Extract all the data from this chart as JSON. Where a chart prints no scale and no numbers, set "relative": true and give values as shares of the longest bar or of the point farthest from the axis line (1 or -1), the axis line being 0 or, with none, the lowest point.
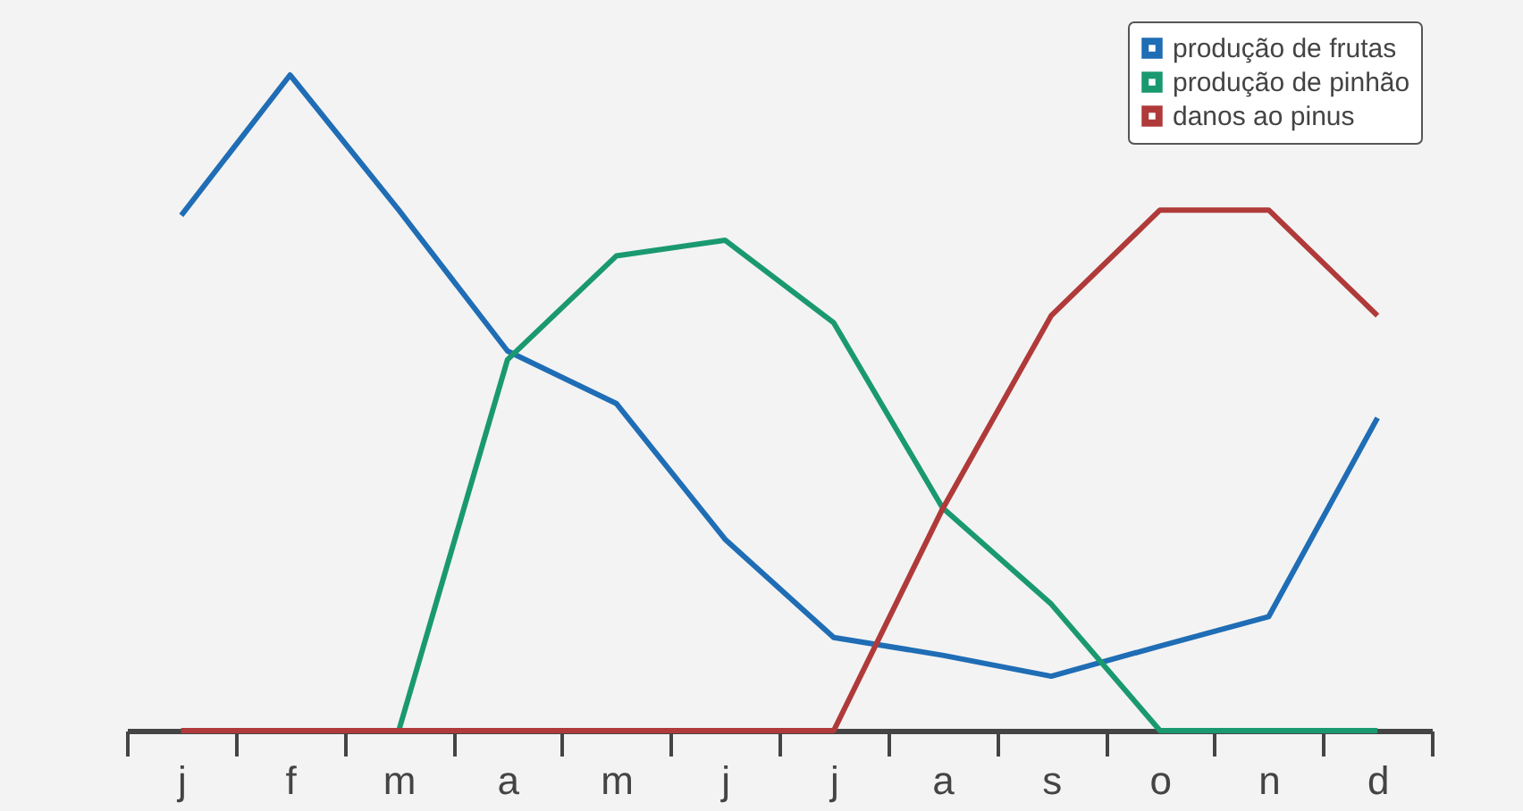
{
  "chart_data": {
    "type": "line",
    "relative": true,
    "categories": [
      "j",
      "f",
      "m",
      "a",
      "m",
      "j",
      "j",
      "a",
      "s",
      "o",
      "n",
      "d"
    ],
    "legend": "top right",
    "marker": "none",
    "line_style": "solid",
    "series": [
      {
        "name": "produção de frutas",
        "color": "#1f6db5",
        "values": [
          0.786,
          1.0,
          0.794,
          0.579,
          0.499,
          0.292,
          0.142,
          0.115,
          0.083,
          0.129,
          0.174,
          0.477
        ]
      },
      {
        "name": "produção de pinhão",
        "color": "#1a9970",
        "values": [
          0,
          0,
          0,
          0.566,
          0.724,
          0.748,
          0.622,
          0.34,
          0.193,
          0,
          0,
          0
        ]
      },
      {
        "name": "danos ao pinus",
        "color": "#b03a3a",
        "values": [
          0,
          0,
          0,
          0,
          0,
          0,
          0,
          0.338,
          0.633,
          0.794,
          0.794,
          0.633
        ]
      }
    ]
  }
}
